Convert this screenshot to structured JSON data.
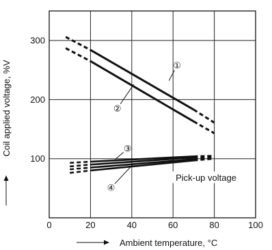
{
  "chart_data": {
    "type": "line",
    "xlabel": "Ambient temperature, °C",
    "ylabel": "Coil applied voltage, %V",
    "xlim": [
      0,
      100
    ],
    "ylim": [
      0,
      350
    ],
    "xticks": [
      0,
      20,
      40,
      60,
      80,
      100
    ],
    "yticks": [
      100,
      200,
      300
    ],
    "grid": true,
    "series": [
      {
        "marker": "①",
        "segments": [
          {
            "style": "solid",
            "x": [
              20,
              70
            ],
            "y": [
              284,
              183
            ]
          },
          {
            "style": "dashed",
            "x": [
              8,
              20
            ],
            "y": [
              306,
              284
            ]
          },
          {
            "style": "dashed",
            "x": [
              70,
              80
            ],
            "y": [
              183,
              161
            ]
          }
        ]
      },
      {
        "marker": "②",
        "segments": [
          {
            "style": "solid",
            "x": [
              20,
              70
            ],
            "y": [
              265,
              163
            ]
          },
          {
            "style": "dashed",
            "x": [
              8,
              20
            ],
            "y": [
              287,
              265
            ]
          },
          {
            "style": "dashed",
            "x": [
              70,
              80
            ],
            "y": [
              163,
              143
            ]
          }
        ]
      },
      {
        "marker": "③",
        "segments": [
          {
            "style": "solid",
            "x": [
              20,
              70
            ],
            "y": [
              95,
              104
            ]
          },
          {
            "style": "dashed",
            "x": [
              10,
              20
            ],
            "y": [
              93,
              95
            ]
          },
          {
            "style": "dashed",
            "x": [
              70,
              80
            ],
            "y": [
              104,
              105
            ]
          }
        ]
      },
      {
        "marker": "④",
        "segments": [
          {
            "style": "solid",
            "x": [
              20,
              70
            ],
            "y": [
              80,
              97
            ]
          },
          {
            "style": "dashed",
            "x": [
              10,
              20
            ],
            "y": [
              76,
              80
            ]
          },
          {
            "style": "dashed",
            "x": [
              70,
              80
            ],
            "y": [
              97,
              100
            ]
          }
        ]
      },
      {
        "segments": [
          {
            "style": "solid",
            "x": [
              20,
              70
            ],
            "y": [
              90,
              102
            ]
          },
          {
            "style": "dashed",
            "x": [
              10,
              20
            ],
            "y": [
              87,
              90
            ]
          },
          {
            "style": "dashed",
            "x": [
              70,
              80
            ],
            "y": [
              102,
              104
            ]
          }
        ]
      },
      {
        "segments": [
          {
            "style": "solid",
            "x": [
              20,
              70
            ],
            "y": [
              85,
              99
            ]
          },
          {
            "style": "dashed",
            "x": [
              10,
              20
            ],
            "y": [
              82,
              85
            ]
          },
          {
            "style": "dashed",
            "x": [
              70,
              80
            ],
            "y": [
              99,
              102
            ]
          }
        ]
      }
    ],
    "annotations": [
      {
        "text": "①",
        "x": 62,
        "y": 258,
        "points_to": {
          "x": 58,
          "y": 232
        }
      },
      {
        "text": "②",
        "x": 33,
        "y": 185,
        "points_to": {
          "x": 41,
          "y": 226
        }
      },
      {
        "text": "③",
        "x": 38,
        "y": 117,
        "points_to": {
          "x": 32,
          "y": 99
        }
      },
      {
        "text": "④",
        "x": 30,
        "y": 51,
        "points_to": {
          "x": 41,
          "y": 92
        }
      },
      {
        "text": "Pick-up voltage",
        "x": 76,
        "y": 68
      }
    ]
  }
}
